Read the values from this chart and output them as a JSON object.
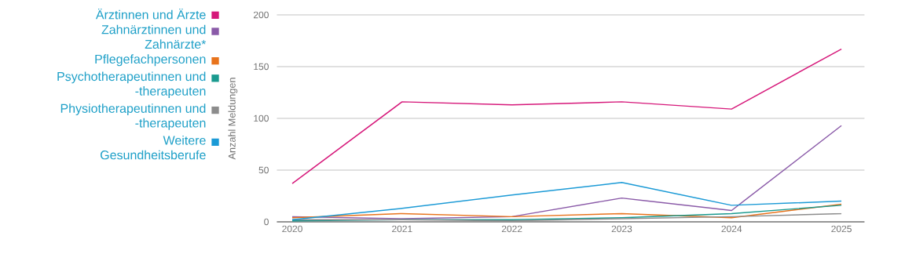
{
  "chart_data": {
    "type": "line",
    "ylabel": "Anzahl Meldungen",
    "categories": [
      "2020",
      "2021",
      "2022",
      "2023",
      "2024",
      "2025"
    ],
    "ylim": [
      0,
      200
    ],
    "yticks": [
      0,
      50,
      100,
      150,
      200
    ],
    "grid": "y",
    "legend": "left",
    "marker": "none",
    "line_style": "solid",
    "series": [
      {
        "name": "Ärztinnen und Ärzte",
        "color": "#d6187a",
        "values": [
          37,
          116,
          113,
          116,
          109,
          167
        ]
      },
      {
        "name": "Zahnärztinnen und Zahnärzte*",
        "color": "#8a5aa8",
        "values": [
          5,
          3,
          5,
          23,
          11,
          93
        ]
      },
      {
        "name": "Pflegefachpersonen",
        "color": "#e8731c",
        "values": [
          4,
          8,
          5,
          8,
          4,
          17
        ]
      },
      {
        "name": "Psychotherapeutinnen und -therapeuten",
        "color": "#1a9a8f",
        "values": [
          1,
          2,
          2,
          4,
          8,
          16
        ]
      },
      {
        "name": "Physiotherapeutinnen und -therapeuten",
        "color": "#8c8c8c",
        "values": [
          2,
          2,
          1,
          3,
          5,
          8
        ]
      },
      {
        "name": "Weitere Gesundheitsberufe",
        "color": "#1b9ad6",
        "values": [
          2,
          13,
          26,
          38,
          16,
          20
        ]
      }
    ]
  }
}
